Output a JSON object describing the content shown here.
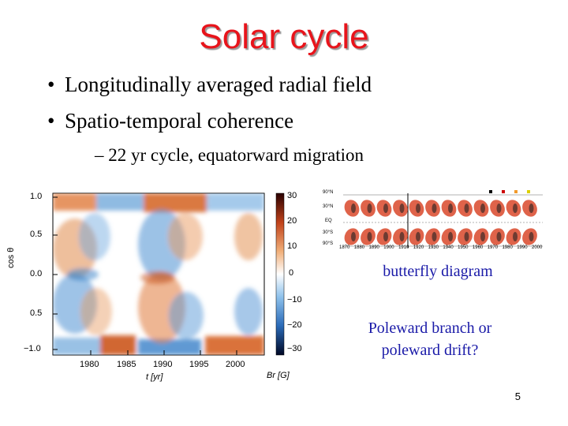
{
  "slide": {
    "title": "Solar cycle",
    "bullets": [
      "Longitudinally averaged radial field",
      "Spatio-temporal coherence"
    ],
    "subbullet": "– 22 yr cycle, equatorward migration",
    "page_number": "5"
  },
  "left_plot": {
    "ylabel": "cos θ",
    "xlabel": "t [yr]",
    "y_ticks": [
      "1.0",
      "0.5",
      "0.0",
      "0.5",
      "−1.0"
    ],
    "x_ticks": [
      "1980",
      "1985",
      "1990",
      "1995",
      "2000"
    ],
    "colorbar_ticks": [
      "30",
      "20",
      "10",
      "0",
      "−10",
      "−20",
      "−30"
    ],
    "colorbar_label": "Br [G]",
    "colors": {
      "positive": "#d8651e",
      "negative": "#2f7fc8"
    }
  },
  "butterfly": {
    "caption": "butterfly diagram",
    "y_ticks": [
      "90°N",
      "30°N",
      "EQ",
      "30°S",
      "90°S"
    ],
    "x_ticks": [
      "1870",
      "1880",
      "1890",
      "1900",
      "1910",
      "1920",
      "1930",
      "1940",
      "1950",
      "1960",
      "1970",
      "1980",
      "1990",
      "2000"
    ]
  },
  "question": {
    "line1": "Poleward branch or",
    "line2": "poleward drift?"
  }
}
